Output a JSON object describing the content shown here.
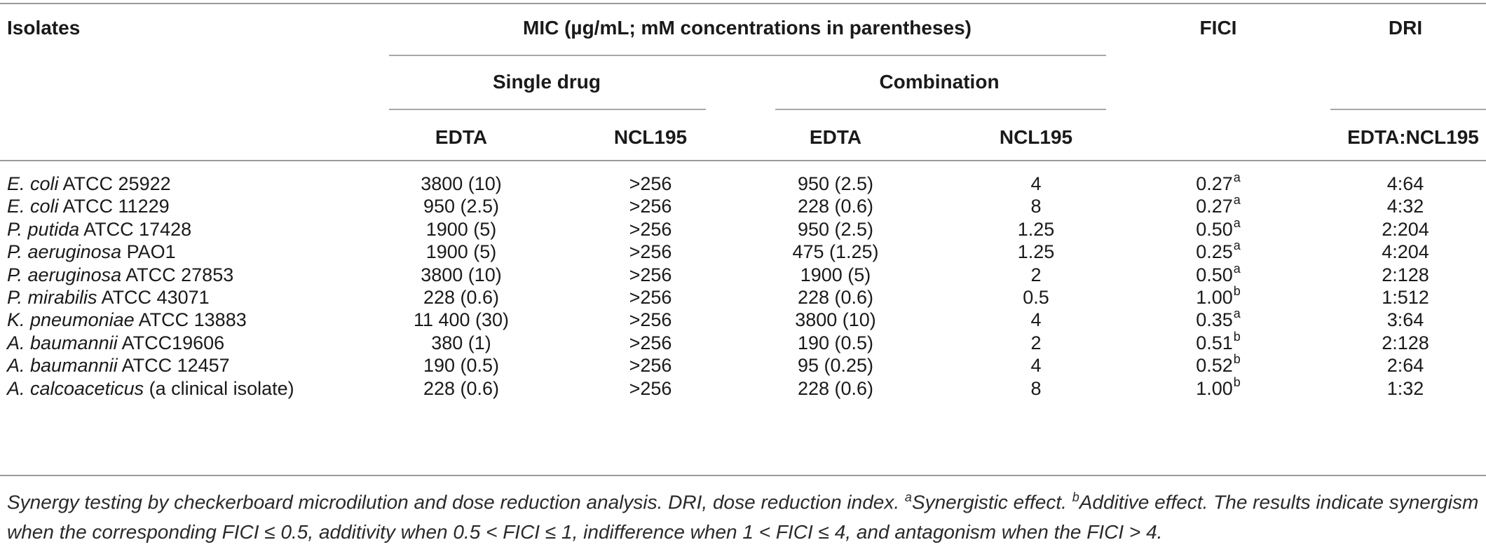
{
  "table": {
    "headers": {
      "isolates": "Isolates",
      "mic": "MIC (µg/mL; mM concentrations in parentheses)",
      "single_drug": "Single drug",
      "combination": "Combination",
      "fici": "FICI",
      "dri": "DRI",
      "edta_single": "EDTA",
      "ncl_single": "NCL195",
      "edta_combo": "EDTA",
      "ncl_combo": "NCL195",
      "dri_sub": "EDTA:NCL195"
    },
    "rows": [
      {
        "species": "E. coli",
        "strain": " ATCC 25922",
        "edta": "3800 (10)",
        "ncl": ">256",
        "edta_c": "950 (2.5)",
        "ncl_c": "4",
        "fici": "0.27",
        "fici_mark": "a",
        "dri": "4:64"
      },
      {
        "species": "E. coli",
        "strain": " ATCC 11229",
        "edta": "950 (2.5)",
        "ncl": ">256",
        "edta_c": "228 (0.6)",
        "ncl_c": "8",
        "fici": "0.27",
        "fici_mark": "a",
        "dri": "4:32"
      },
      {
        "species": "P. putida",
        "strain": " ATCC 17428",
        "edta": "1900 (5)",
        "ncl": ">256",
        "edta_c": "950 (2.5)",
        "ncl_c": "1.25",
        "fici": "0.50",
        "fici_mark": "a",
        "dri": "2:204"
      },
      {
        "species": "P. aeruginosa",
        "strain": " PAO1",
        "edta": "1900 (5)",
        "ncl": ">256",
        "edta_c": "475 (1.25)",
        "ncl_c": "1.25",
        "fici": "0.25",
        "fici_mark": "a",
        "dri": "4:204"
      },
      {
        "species": "P. aeruginosa",
        "strain": " ATCC 27853",
        "edta": "3800 (10)",
        "ncl": ">256",
        "edta_c": "1900 (5)",
        "ncl_c": "2",
        "fici": "0.50",
        "fici_mark": "a",
        "dri": "2:128"
      },
      {
        "species": "P. mirabilis",
        "strain": " ATCC 43071",
        "edta": "228 (0.6)",
        "ncl": ">256",
        "edta_c": "228 (0.6)",
        "ncl_c": "0.5",
        "fici": "1.00",
        "fici_mark": "b",
        "dri": "1:512"
      },
      {
        "species": "K. pneumoniae",
        "strain": " ATCC 13883",
        "edta": "11 400 (30)",
        "ncl": ">256",
        "edta_c": "3800 (10)",
        "ncl_c": "4",
        "fici": "0.35",
        "fici_mark": "a",
        "dri": "3:64"
      },
      {
        "species": "A. baumannii",
        "strain": " ATCC19606",
        "edta": "380 (1)",
        "ncl": ">256",
        "edta_c": "190 (0.5)",
        "ncl_c": "2",
        "fici": "0.51",
        "fici_mark": "b",
        "dri": "2:128"
      },
      {
        "species": "A. baumannii",
        "strain": " ATCC 12457",
        "edta": "190 (0.5)",
        "ncl": ">256",
        "edta_c": "95 (0.25)",
        "ncl_c": "4",
        "fici": "0.52",
        "fici_mark": "b",
        "dri": "2:64"
      },
      {
        "species": "A. calcoaceticus",
        "strain": " (a clinical isolate)",
        "edta": "228 (0.6)",
        "ncl": ">256",
        "edta_c": "228 (0.6)",
        "ncl_c": "8",
        "fici": "1.00",
        "fici_mark": "b",
        "dri": "1:32"
      }
    ]
  },
  "footnote": {
    "text1": "Synergy testing by checkerboard microdilution and dose reduction analysis. DRI, dose reduction index. ",
    "mark_a": "a",
    "text_a": "Synergistic effect. ",
    "mark_b": "b",
    "text_b": "Additive effect. The results indicate synergism when the corresponding FICI ≤ 0.5, additivity when 0.5 < FICI ≤ 1, indifference when 1 < FICI ≤ 4, and antagonism when the FICI > 4."
  }
}
